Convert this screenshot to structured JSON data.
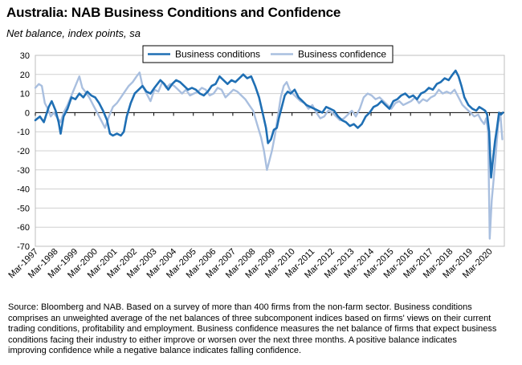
{
  "header": {
    "title": "Australia: NAB Business Conditions and Confidence",
    "subtitle": "Net balance, index points, sa"
  },
  "colors": {
    "conditions": "#1f6fb4",
    "confidence": "#a9bfdf",
    "grid": "#d0d0d0",
    "axis": "#000000"
  },
  "chart_data": {
    "type": "line",
    "title": "Australia: NAB Business Conditions and Confidence",
    "subtitle": "Net balance, index points, sa",
    "ylim": [
      -70,
      30
    ],
    "yticks": [
      30,
      20,
      10,
      0,
      -10,
      -20,
      -30,
      -40,
      -50,
      -60,
      -70
    ],
    "xlim": [
      1997.17,
      2020.92
    ],
    "xticks": [
      {
        "label": "Mar-1997",
        "x": 1997.17
      },
      {
        "label": "Mar-1998",
        "x": 1998.17
      },
      {
        "label": "Mar-1999",
        "x": 1999.17
      },
      {
        "label": "Mar-2000",
        "x": 2000.17
      },
      {
        "label": "Mar-2001",
        "x": 2001.17
      },
      {
        "label": "Mar-2002",
        "x": 2002.17
      },
      {
        "label": "Mar-2003",
        "x": 2003.17
      },
      {
        "label": "Mar-2004",
        "x": 2004.17
      },
      {
        "label": "Mar-2005",
        "x": 2005.17
      },
      {
        "label": "Mar-2006",
        "x": 2006.17
      },
      {
        "label": "Mar-2007",
        "x": 2007.17
      },
      {
        "label": "Mar-2008",
        "x": 2008.17
      },
      {
        "label": "Mar-2009",
        "x": 2009.17
      },
      {
        "label": "Mar-2010",
        "x": 2010.17
      },
      {
        "label": "Mar-2011",
        "x": 2011.17
      },
      {
        "label": "Mar-2012",
        "x": 2012.17
      },
      {
        "label": "Mar-2013",
        "x": 2013.17
      },
      {
        "label": "Mar-2014",
        "x": 2014.17
      },
      {
        "label": "Mar-2015",
        "x": 2015.17
      },
      {
        "label": "Mar-2016",
        "x": 2016.17
      },
      {
        "label": "Mar-2017",
        "x": 2017.17
      },
      {
        "label": "Mar-2018",
        "x": 2018.17
      },
      {
        "label": "Mar-2019",
        "x": 2019.17
      },
      {
        "label": "Mar-2020",
        "x": 2020.17
      }
    ],
    "grid": "horizontal",
    "legend_position": "top-center",
    "series": [
      {
        "name": "Business conditions",
        "color": "#1f6fb4",
        "points": [
          [
            1997.17,
            -4
          ],
          [
            1997.4,
            -2
          ],
          [
            1997.6,
            -5
          ],
          [
            1997.85,
            3
          ],
          [
            1998.0,
            6
          ],
          [
            1998.2,
            1
          ],
          [
            1998.35,
            -5
          ],
          [
            1998.45,
            -11
          ],
          [
            1998.6,
            -2
          ],
          [
            1998.8,
            2
          ],
          [
            1999.0,
            8
          ],
          [
            1999.2,
            7
          ],
          [
            1999.4,
            10
          ],
          [
            1999.6,
            8
          ],
          [
            1999.8,
            11
          ],
          [
            2000.0,
            9
          ],
          [
            2000.2,
            8
          ],
          [
            2000.4,
            5
          ],
          [
            2000.6,
            1
          ],
          [
            2000.8,
            -4
          ],
          [
            2000.95,
            -11
          ],
          [
            2001.1,
            -12
          ],
          [
            2001.3,
            -11
          ],
          [
            2001.5,
            -12
          ],
          [
            2001.65,
            -10
          ],
          [
            2001.8,
            -2
          ],
          [
            2002.0,
            5
          ],
          [
            2002.2,
            10
          ],
          [
            2002.4,
            12
          ],
          [
            2002.6,
            14
          ],
          [
            2002.8,
            11
          ],
          [
            2003.0,
            10
          ],
          [
            2003.2,
            13
          ],
          [
            2003.5,
            17
          ],
          [
            2003.7,
            15
          ],
          [
            2003.9,
            12
          ],
          [
            2004.1,
            15
          ],
          [
            2004.3,
            17
          ],
          [
            2004.5,
            16
          ],
          [
            2004.7,
            14
          ],
          [
            2004.9,
            12
          ],
          [
            2005.1,
            13
          ],
          [
            2005.3,
            12
          ],
          [
            2005.5,
            10
          ],
          [
            2005.7,
            9
          ],
          [
            2005.9,
            11
          ],
          [
            2006.1,
            14
          ],
          [
            2006.3,
            15
          ],
          [
            2006.5,
            19
          ],
          [
            2006.7,
            17
          ],
          [
            2006.9,
            15
          ],
          [
            2007.1,
            17
          ],
          [
            2007.3,
            16
          ],
          [
            2007.5,
            18
          ],
          [
            2007.7,
            20
          ],
          [
            2007.9,
            18
          ],
          [
            2008.1,
            19
          ],
          [
            2008.3,
            14
          ],
          [
            2008.5,
            8
          ],
          [
            2008.7,
            -1
          ],
          [
            2008.85,
            -8
          ],
          [
            2008.95,
            -16
          ],
          [
            2009.1,
            -14
          ],
          [
            2009.25,
            -9
          ],
          [
            2009.4,
            -8
          ],
          [
            2009.5,
            -3
          ],
          [
            2009.65,
            3
          ],
          [
            2009.8,
            9
          ],
          [
            2009.95,
            11
          ],
          [
            2010.1,
            10
          ],
          [
            2010.3,
            12
          ],
          [
            2010.5,
            8
          ],
          [
            2010.7,
            6
          ],
          [
            2010.9,
            4
          ],
          [
            2011.1,
            3
          ],
          [
            2011.3,
            2
          ],
          [
            2011.5,
            1
          ],
          [
            2011.7,
            0
          ],
          [
            2011.9,
            3
          ],
          [
            2012.1,
            2
          ],
          [
            2012.3,
            1
          ],
          [
            2012.5,
            -2
          ],
          [
            2012.7,
            -4
          ],
          [
            2012.9,
            -5
          ],
          [
            2013.1,
            -7
          ],
          [
            2013.3,
            -6
          ],
          [
            2013.5,
            -8
          ],
          [
            2013.7,
            -6
          ],
          [
            2013.9,
            -2
          ],
          [
            2014.1,
            0
          ],
          [
            2014.3,
            3
          ],
          [
            2014.5,
            4
          ],
          [
            2014.7,
            6
          ],
          [
            2014.9,
            4
          ],
          [
            2015.1,
            2
          ],
          [
            2015.3,
            6
          ],
          [
            2015.5,
            7
          ],
          [
            2015.7,
            9
          ],
          [
            2015.9,
            10
          ],
          [
            2016.1,
            8
          ],
          [
            2016.3,
            9
          ],
          [
            2016.5,
            7
          ],
          [
            2016.7,
            10
          ],
          [
            2016.9,
            11
          ],
          [
            2017.1,
            13
          ],
          [
            2017.3,
            12
          ],
          [
            2017.5,
            15
          ],
          [
            2017.7,
            16
          ],
          [
            2017.9,
            18
          ],
          [
            2018.1,
            17
          ],
          [
            2018.3,
            20
          ],
          [
            2018.45,
            22
          ],
          [
            2018.6,
            19
          ],
          [
            2018.75,
            14
          ],
          [
            2018.9,
            8
          ],
          [
            2019.1,
            4
          ],
          [
            2019.3,
            2
          ],
          [
            2019.5,
            1
          ],
          [
            2019.65,
            3
          ],
          [
            2019.8,
            2
          ],
          [
            2019.95,
            1
          ],
          [
            2020.05,
            -1
          ],
          [
            2020.15,
            -10
          ],
          [
            2020.25,
            -34
          ],
          [
            2020.35,
            -24
          ],
          [
            2020.45,
            -15
          ],
          [
            2020.55,
            -8
          ],
          [
            2020.65,
            0
          ],
          [
            2020.75,
            -1
          ],
          [
            2020.85,
            0
          ]
        ]
      },
      {
        "name": "Business confidence",
        "color": "#a9bfdf",
        "points": [
          [
            1997.17,
            13
          ],
          [
            1997.35,
            15
          ],
          [
            1997.5,
            14
          ],
          [
            1997.65,
            5
          ],
          [
            1997.8,
            2
          ],
          [
            1997.95,
            -2
          ],
          [
            1998.1,
            0
          ],
          [
            1998.3,
            -3
          ],
          [
            1998.45,
            -5
          ],
          [
            1998.6,
            0
          ],
          [
            1998.8,
            4
          ],
          [
            1999.0,
            9
          ],
          [
            1999.2,
            14
          ],
          [
            1999.4,
            19
          ],
          [
            1999.55,
            13
          ],
          [
            1999.7,
            11
          ],
          [
            1999.9,
            8
          ],
          [
            2000.1,
            4
          ],
          [
            2000.3,
            0
          ],
          [
            2000.5,
            -4
          ],
          [
            2000.7,
            -8
          ],
          [
            2000.9,
            -2
          ],
          [
            2001.1,
            3
          ],
          [
            2001.3,
            5
          ],
          [
            2001.5,
            8
          ],
          [
            2001.7,
            11
          ],
          [
            2001.9,
            14
          ],
          [
            2002.1,
            16
          ],
          [
            2002.3,
            19
          ],
          [
            2002.45,
            21
          ],
          [
            2002.6,
            14
          ],
          [
            2002.8,
            10
          ],
          [
            2003.0,
            6
          ],
          [
            2003.2,
            12
          ],
          [
            2003.4,
            11
          ],
          [
            2003.6,
            16
          ],
          [
            2003.8,
            13
          ],
          [
            2004.0,
            15
          ],
          [
            2004.2,
            14
          ],
          [
            2004.4,
            12
          ],
          [
            2004.6,
            10
          ],
          [
            2004.8,
            12
          ],
          [
            2005.0,
            9
          ],
          [
            2005.2,
            10
          ],
          [
            2005.4,
            11
          ],
          [
            2005.6,
            13
          ],
          [
            2005.8,
            12
          ],
          [
            2006.0,
            9
          ],
          [
            2006.2,
            10
          ],
          [
            2006.4,
            13
          ],
          [
            2006.6,
            12
          ],
          [
            2006.8,
            8
          ],
          [
            2007.0,
            10
          ],
          [
            2007.2,
            12
          ],
          [
            2007.4,
            11
          ],
          [
            2007.6,
            9
          ],
          [
            2007.8,
            7
          ],
          [
            2008.0,
            4
          ],
          [
            2008.2,
            1
          ],
          [
            2008.4,
            -6
          ],
          [
            2008.6,
            -13
          ],
          [
            2008.75,
            -20
          ],
          [
            2008.9,
            -30
          ],
          [
            2009.0,
            -26
          ],
          [
            2009.15,
            -20
          ],
          [
            2009.3,
            -12
          ],
          [
            2009.45,
            -2
          ],
          [
            2009.6,
            8
          ],
          [
            2009.75,
            14
          ],
          [
            2009.9,
            16
          ],
          [
            2010.05,
            12
          ],
          [
            2010.2,
            10
          ],
          [
            2010.4,
            8
          ],
          [
            2010.6,
            6
          ],
          [
            2010.8,
            5
          ],
          [
            2011.0,
            2
          ],
          [
            2011.2,
            4
          ],
          [
            2011.4,
            0
          ],
          [
            2011.6,
            -3
          ],
          [
            2011.8,
            -2
          ],
          [
            2012.0,
            1
          ],
          [
            2012.2,
            0
          ],
          [
            2012.4,
            -2
          ],
          [
            2012.6,
            -4
          ],
          [
            2012.8,
            -3
          ],
          [
            2013.0,
            -1
          ],
          [
            2013.2,
            1
          ],
          [
            2013.4,
            -2
          ],
          [
            2013.6,
            2
          ],
          [
            2013.8,
            8
          ],
          [
            2014.0,
            10
          ],
          [
            2014.2,
            9
          ],
          [
            2014.4,
            7
          ],
          [
            2014.6,
            8
          ],
          [
            2014.8,
            6
          ],
          [
            2015.0,
            4
          ],
          [
            2015.2,
            2
          ],
          [
            2015.4,
            5
          ],
          [
            2015.6,
            6
          ],
          [
            2015.8,
            4
          ],
          [
            2016.0,
            5
          ],
          [
            2016.2,
            6
          ],
          [
            2016.4,
            8
          ],
          [
            2016.6,
            5
          ],
          [
            2016.8,
            7
          ],
          [
            2017.0,
            6
          ],
          [
            2017.2,
            8
          ],
          [
            2017.4,
            9
          ],
          [
            2017.6,
            12
          ],
          [
            2017.8,
            10
          ],
          [
            2018.0,
            11
          ],
          [
            2018.2,
            10
          ],
          [
            2018.4,
            12
          ],
          [
            2018.6,
            8
          ],
          [
            2018.8,
            4
          ],
          [
            2019.0,
            2
          ],
          [
            2019.2,
            0
          ],
          [
            2019.4,
            -2
          ],
          [
            2019.6,
            -1
          ],
          [
            2019.75,
            -4
          ],
          [
            2019.9,
            -6
          ],
          [
            2020.0,
            -3
          ],
          [
            2020.1,
            -10
          ],
          [
            2020.18,
            -66
          ],
          [
            2020.28,
            -46
          ],
          [
            2020.38,
            -35
          ],
          [
            2020.5,
            -20
          ],
          [
            2020.62,
            -5
          ],
          [
            2020.72,
            -1
          ],
          [
            2020.82,
            -14
          ]
        ]
      }
    ]
  },
  "footer": {
    "source_lines": [
      "Source: Bloomberg and NAB. Based on a survey of more than 400 firms from the non-farm sector.  Business conditions",
      "comprises an unweighted average of the net balances of three subcomponent indices based on firms' views on their current",
      "trading conditions, profitability and employment.  Business confidence measures the net balance of firms that expect business",
      "conditions facing their industry to either improve or worsen over the next three months.  A positive balance indicates",
      "improving confidence while a negative balance indicates falling confidence."
    ]
  }
}
